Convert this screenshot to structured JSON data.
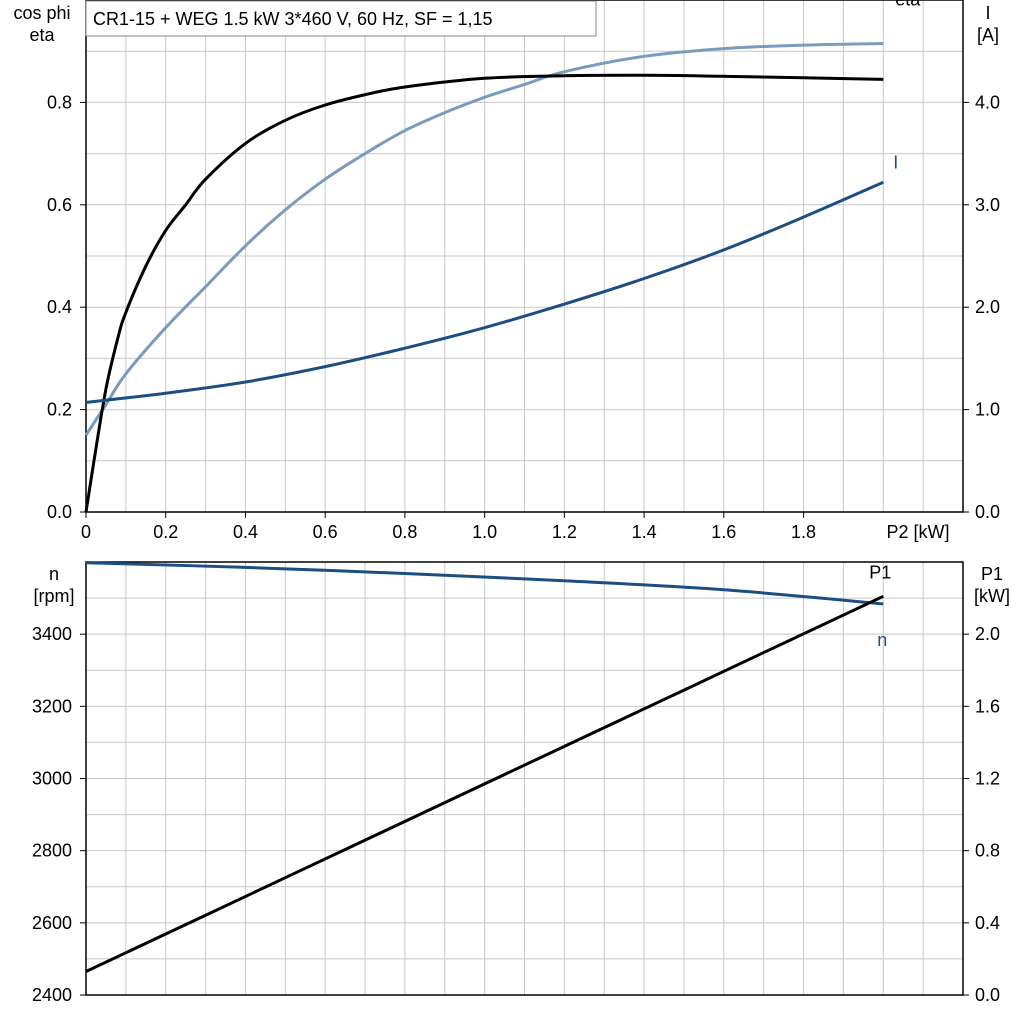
{
  "chart_data": [
    {
      "type": "line",
      "title": "CR1-15 + WEG   1.5 kW   3*460 V, 60 Hz, SF = 1,15",
      "xlabel": "P2 [kW]",
      "xlim": [
        0,
        2.2
      ],
      "x_ticks": [
        "0",
        "0.2",
        "0.4",
        "0.6",
        "0.8",
        "1.0",
        "1.2",
        "1.4",
        "1.6",
        "1.8"
      ],
      "left_axis": {
        "label_lines": [
          "cos phi",
          "eta"
        ],
        "ylim": [
          0,
          1.0
        ],
        "ticks": [
          "0.0",
          "0.2",
          "0.4",
          "0.6",
          "0.8"
        ]
      },
      "right_axis": {
        "label_lines": [
          "I",
          "[A]"
        ],
        "ylim": [
          0,
          5.0
        ],
        "ticks": [
          "0.0",
          "1.0",
          "2.0",
          "3.0",
          "4.0"
        ]
      },
      "grid": true,
      "series": [
        {
          "name": "cos phi",
          "axis": "left",
          "color": "#7a9bbd",
          "x": [
            0,
            0.05,
            0.1,
            0.2,
            0.3,
            0.4,
            0.5,
            0.6,
            0.7,
            0.8,
            0.9,
            1.0,
            1.1,
            1.2,
            1.4,
            1.6,
            1.8,
            2.0
          ],
          "y": [
            0.15,
            0.21,
            0.27,
            0.36,
            0.44,
            0.52,
            0.59,
            0.65,
            0.7,
            0.745,
            0.78,
            0.81,
            0.835,
            0.86,
            0.89,
            0.905,
            0.912,
            0.915
          ]
        },
        {
          "name": "eta",
          "axis": "left",
          "color": "#000000",
          "x": [
            0,
            0.02,
            0.05,
            0.08,
            0.1,
            0.15,
            0.2,
            0.25,
            0.3,
            0.4,
            0.5,
            0.6,
            0.7,
            0.8,
            1.0,
            1.2,
            1.4,
            1.6,
            1.8,
            2.0
          ],
          "y": [
            0,
            0.1,
            0.24,
            0.34,
            0.39,
            0.48,
            0.55,
            0.6,
            0.65,
            0.72,
            0.765,
            0.795,
            0.815,
            0.83,
            0.847,
            0.852,
            0.853,
            0.851,
            0.848,
            0.845
          ]
        },
        {
          "name": "I",
          "axis": "right",
          "color": "#1b4f82",
          "x": [
            0,
            0.2,
            0.4,
            0.6,
            0.8,
            1.0,
            1.2,
            1.4,
            1.6,
            1.8,
            2.0
          ],
          "y": [
            1.07,
            1.16,
            1.27,
            1.42,
            1.6,
            1.8,
            2.03,
            2.28,
            2.56,
            2.88,
            3.22
          ]
        }
      ]
    },
    {
      "type": "line",
      "xlim": [
        0,
        2.2
      ],
      "left_axis": {
        "label_lines": [
          "n",
          "[rpm]"
        ],
        "ylim": [
          2400,
          3600
        ],
        "ticks": [
          "2400",
          "2600",
          "2800",
          "3000",
          "3200",
          "3400"
        ]
      },
      "right_axis": {
        "label_lines": [
          "P1",
          "[kW]"
        ],
        "ylim": [
          0,
          2.4
        ],
        "ticks": [
          "0.0",
          "0.4",
          "0.8",
          "1.2",
          "1.6",
          "2.0"
        ]
      },
      "grid": true,
      "series": [
        {
          "name": "n",
          "axis": "left",
          "color": "#1b4f82",
          "x": [
            0,
            0.4,
            0.8,
            1.2,
            1.6,
            2.0
          ],
          "y": [
            3598,
            3585,
            3568,
            3548,
            3523,
            3484
          ]
        },
        {
          "name": "P1",
          "axis": "right",
          "color": "#000000",
          "x": [
            0,
            0.5,
            1.0,
            1.5,
            2.0
          ],
          "y": [
            0.13,
            0.65,
            1.17,
            1.69,
            2.21
          ]
        }
      ]
    }
  ]
}
